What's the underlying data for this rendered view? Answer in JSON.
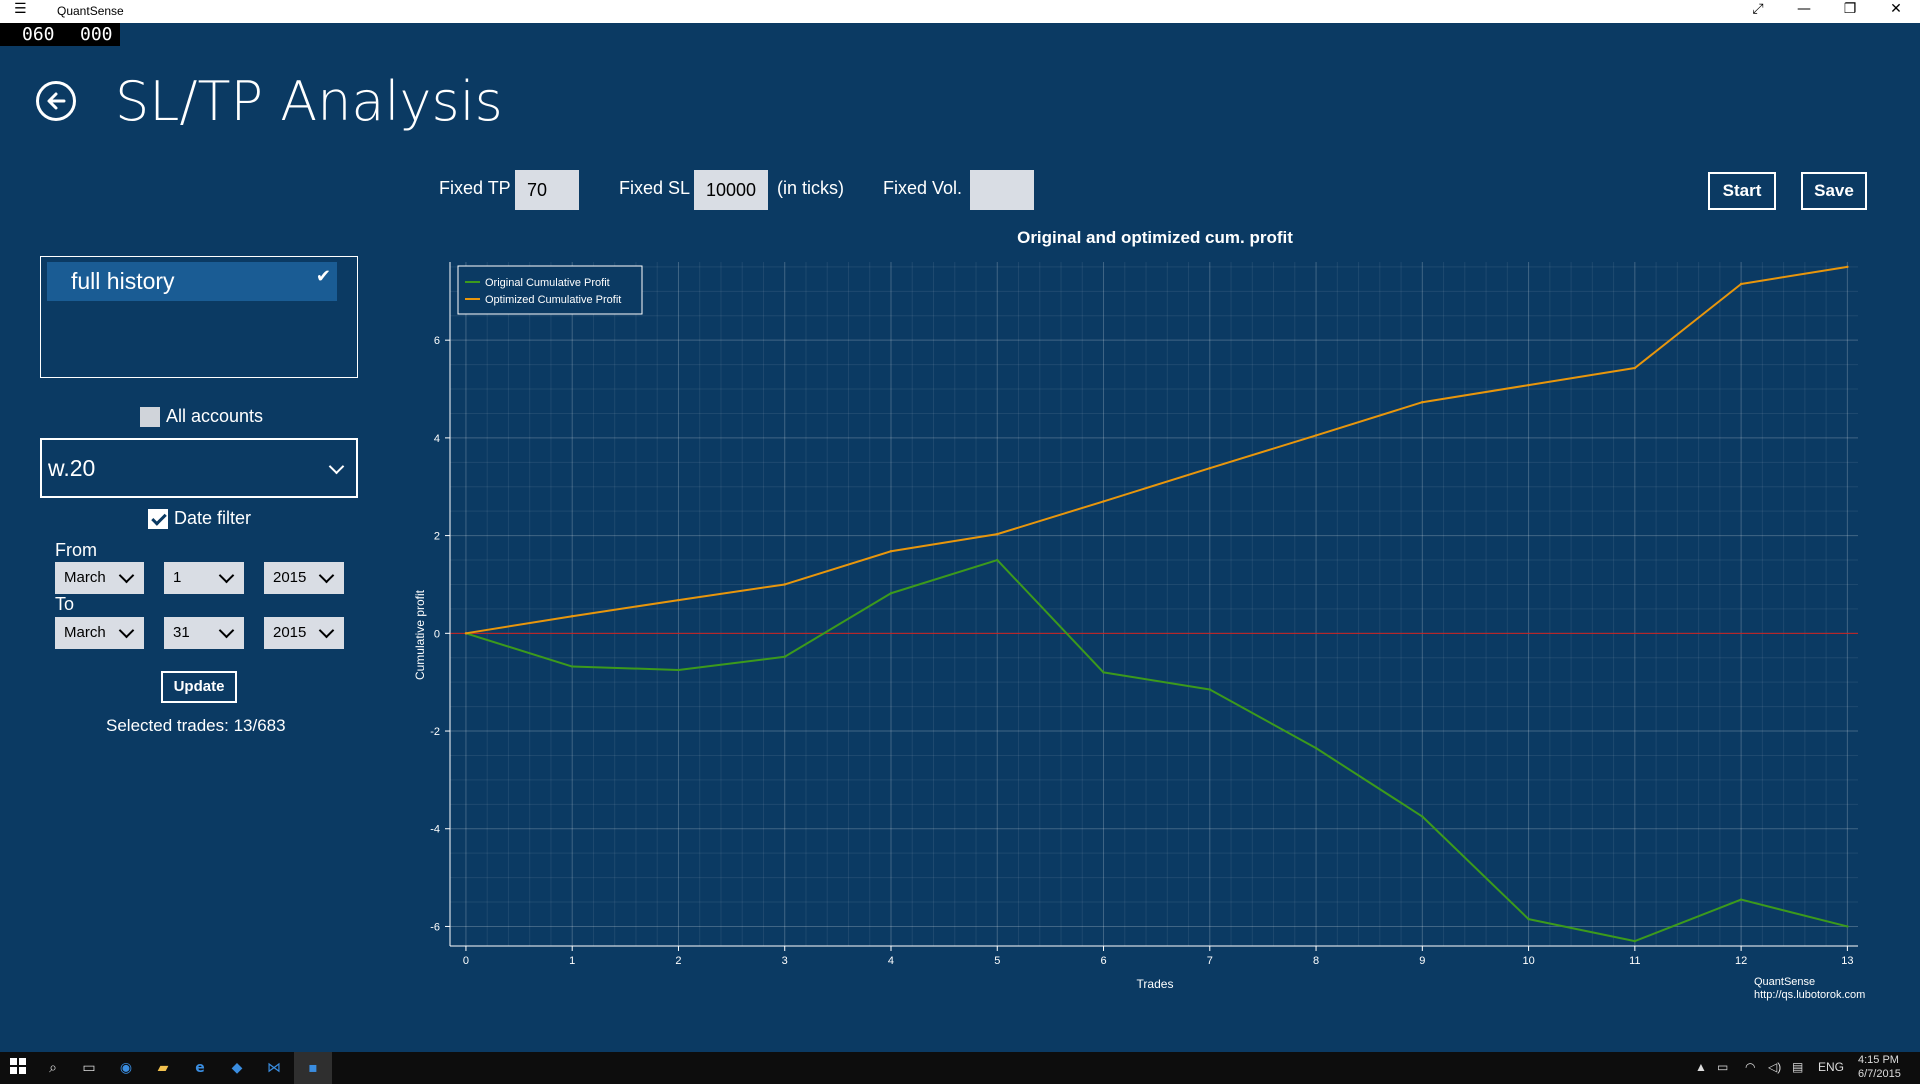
{
  "titlebar": {
    "app_name": "QuantSense",
    "menu_icon": "hamburger-menu-icon",
    "controls": [
      "fullscreen-icon",
      "minimize-icon",
      "restore-icon",
      "close-icon"
    ]
  },
  "counter": {
    "left": "060",
    "right": "000"
  },
  "page": {
    "title": "SL/TP Analysis",
    "back_icon": "back-arrow-icon"
  },
  "params": {
    "fixed_tp_label": "Fixed TP",
    "fixed_tp_value": "70",
    "fixed_sl_label": "Fixed SL",
    "fixed_sl_value": "10000",
    "ticks_label": "(in ticks)",
    "fixed_vol_label": "Fixed Vol.",
    "fixed_vol_value": ""
  },
  "actions": {
    "start": "Start",
    "save": "Save"
  },
  "sidebar": {
    "history_items": [
      {
        "label": "full history",
        "selected": true
      }
    ],
    "all_accounts_label": "All accounts",
    "all_accounts_checked": false,
    "account_value": "w.20",
    "date_filter_label": "Date filter",
    "date_filter_checked": true,
    "from_label": "From",
    "to_label": "To",
    "from": {
      "month": "March",
      "day": "1",
      "year": "2015"
    },
    "to": {
      "month": "March",
      "day": "31",
      "year": "2015"
    },
    "update_label": "Update",
    "selected_trades": "Selected trades: 13/683"
  },
  "chart_data": {
    "type": "line",
    "title": "Original and optimized cum. profit",
    "xlabel": "Trades",
    "ylabel": "Cumulative profit",
    "x": [
      0,
      1,
      2,
      3,
      4,
      5,
      6,
      7,
      8,
      9,
      10,
      11,
      12,
      13
    ],
    "series": [
      {
        "name": "Original Cumulative Profit",
        "color": "#3c9a1c",
        "values": [
          0,
          -0.68,
          -0.75,
          -0.48,
          0.82,
          1.5,
          -0.8,
          -1.15,
          -2.35,
          -3.75,
          -5.85,
          -6.3,
          -5.45,
          -6.0
        ]
      },
      {
        "name": "Optimized Cumulative Profit",
        "color": "#e8960c",
        "values": [
          0,
          0.35,
          0.68,
          1.0,
          1.68,
          2.03,
          2.7,
          3.38,
          4.05,
          4.73,
          5.08,
          5.43,
          7.15,
          7.5
        ]
      }
    ],
    "xlim": [
      -0.15,
      13.1
    ],
    "ylim": [
      -6.4,
      7.6
    ],
    "xticks": [
      "0",
      "1",
      "2",
      "3",
      "4",
      "5",
      "6",
      "7",
      "8",
      "9",
      "10",
      "11",
      "12",
      "13"
    ],
    "yticks": [
      "-6",
      "-4",
      "-2",
      "0",
      "2",
      "4",
      "6"
    ],
    "zero_line_color": "#c8201e",
    "grid": true,
    "legend": "top-left",
    "watermark": [
      "QuantSense",
      "http://qs.lubotorok.com"
    ]
  },
  "taskbar": {
    "icons": [
      "windows-start-icon",
      "search-icon",
      "task-view-icon",
      "globe-icon",
      "folder-icon",
      "ie-icon",
      "app-icon",
      "vs-icon",
      "quantsense-icon"
    ],
    "lang": "ENG",
    "time": "4:15 PM",
    "date": "6/7/2015"
  }
}
